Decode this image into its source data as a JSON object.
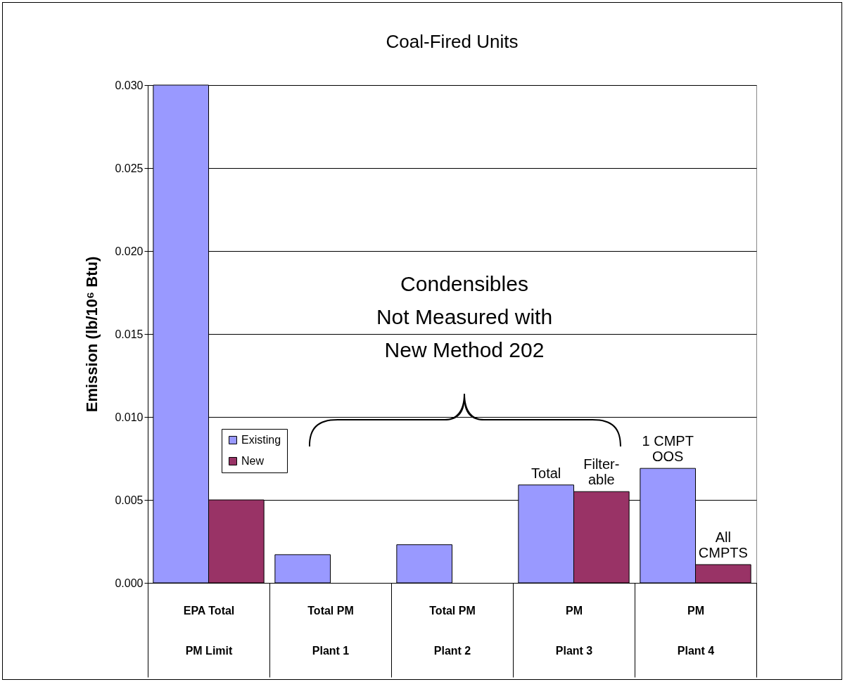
{
  "chart_data": {
    "type": "bar",
    "title": "Coal-Fired Units",
    "ylabel": "Emission (lb/10⁶ Btu)",
    "categories": [
      "EPA Total\nPM Limit",
      "Total PM\nPlant 1",
      "Total PM\nPlant 2",
      "PM\nPlant 3",
      "PM\nPlant 4"
    ],
    "series": [
      {
        "name": "Existing",
        "color": "#9999ff",
        "values": [
          0.03,
          0.0017,
          0.0023,
          0.0059,
          0.0069
        ]
      },
      {
        "name": "New",
        "color": "#993366",
        "values": [
          0.005,
          null,
          null,
          0.0055,
          0.0011
        ]
      }
    ],
    "ylim": [
      0,
      0.03
    ],
    "yticks": [
      {
        "value": 0,
        "label": "0.000"
      },
      {
        "value": 0.005,
        "label": "0.005"
      },
      {
        "value": 0.01,
        "label": "0.010"
      },
      {
        "value": 0.015,
        "label": "0.015"
      },
      {
        "value": 0.02,
        "label": "0.020"
      },
      {
        "value": 0.025,
        "label": "0.025"
      },
      {
        "value": 0.03,
        "label": "0.030"
      }
    ],
    "grid": "y",
    "legend": "left",
    "annotations": [
      "Condensibles\nNot Measured with\nNew Method 202",
      {
        "text": "Total",
        "x": "PM\nPlant 3",
        "y": 0.0059
      },
      {
        "text": "Filter-\nable",
        "x": "PM\nPlant 3",
        "y": 0.0055
      },
      {
        "text": "1 CMPT\nOOS",
        "x": "PM\nPlant 4",
        "y": 0.0069
      },
      {
        "text": "All\nCMPTS",
        "x": "PM\nPlant 4",
        "y": 0.0011
      }
    ]
  }
}
